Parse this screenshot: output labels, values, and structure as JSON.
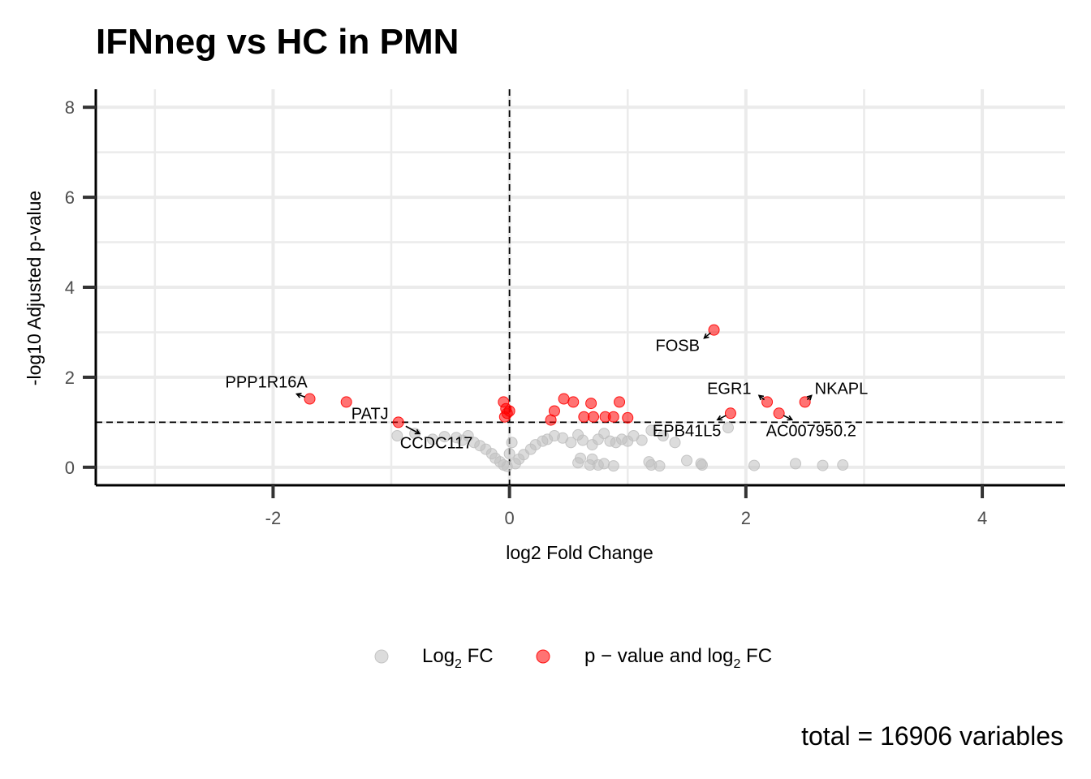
{
  "chart_data": {
    "type": "scatter",
    "title": "IFNneg vs HC in PMN",
    "xlabel": "log2 Fold Change",
    "ylabel": "-log10 Adjusted p-value",
    "xlim": [
      -3.5,
      4.7
    ],
    "ylim": [
      -0.4,
      8.4
    ],
    "x_ticks": [
      -2,
      0,
      2,
      4
    ],
    "x_tick_labels": [
      "-2",
      "0",
      "2",
      "4"
    ],
    "y_ticks": [
      0,
      2,
      4,
      6,
      8
    ],
    "y_tick_labels": [
      "0",
      "2",
      "4",
      "6",
      "8"
    ],
    "grid": true,
    "thresholds": {
      "log2fc": 0,
      "neg_log10_padj": 1.0
    },
    "legend_position": "bottom",
    "caption": "total = 16906 variables",
    "colors": {
      "ns": "#c0c0c0",
      "sig": "#ff0000"
    },
    "series": [
      {
        "name": "Log2 FC",
        "legend_main": "Log",
        "legend_sub": "2",
        "legend_tail": " FC",
        "color": "#c0c0c0",
        "points": [
          {
            "x": -0.95,
            "y": 0.7
          },
          {
            "x": -0.8,
            "y": 0.75
          },
          {
            "x": -0.65,
            "y": 0.62
          },
          {
            "x": -0.55,
            "y": 0.68
          },
          {
            "x": -0.45,
            "y": 0.66
          },
          {
            "x": -0.4,
            "y": 0.6
          },
          {
            "x": -0.35,
            "y": 0.7
          },
          {
            "x": -0.3,
            "y": 0.55
          },
          {
            "x": -0.25,
            "y": 0.48
          },
          {
            "x": -0.2,
            "y": 0.4
          },
          {
            "x": -0.15,
            "y": 0.3
          },
          {
            "x": -0.12,
            "y": 0.2
          },
          {
            "x": -0.08,
            "y": 0.12
          },
          {
            "x": -0.05,
            "y": 0.05
          },
          {
            "x": -0.02,
            "y": 0.02
          },
          {
            "x": 0.0,
            "y": 0.3
          },
          {
            "x": 0.02,
            "y": 0.55
          },
          {
            "x": 0.05,
            "y": 0.08
          },
          {
            "x": 0.08,
            "y": 0.18
          },
          {
            "x": 0.12,
            "y": 0.28
          },
          {
            "x": 0.18,
            "y": 0.4
          },
          {
            "x": 0.22,
            "y": 0.5
          },
          {
            "x": 0.28,
            "y": 0.58
          },
          {
            "x": 0.32,
            "y": 0.62
          },
          {
            "x": 0.38,
            "y": 0.7
          },
          {
            "x": 0.45,
            "y": 0.65
          },
          {
            "x": 0.52,
            "y": 0.55
          },
          {
            "x": 0.58,
            "y": 0.72
          },
          {
            "x": 0.62,
            "y": 0.6
          },
          {
            "x": 0.7,
            "y": 0.5
          },
          {
            "x": 0.75,
            "y": 0.62
          },
          {
            "x": 0.8,
            "y": 0.75
          },
          {
            "x": 0.85,
            "y": 0.58
          },
          {
            "x": 0.9,
            "y": 0.55
          },
          {
            "x": 0.95,
            "y": 0.62
          },
          {
            "x": 1.0,
            "y": 0.58
          },
          {
            "x": 1.05,
            "y": 0.7
          },
          {
            "x": 1.12,
            "y": 0.6
          },
          {
            "x": 1.2,
            "y": 0.82
          },
          {
            "x": 1.3,
            "y": 0.7
          },
          {
            "x": 1.4,
            "y": 0.55
          },
          {
            "x": 1.85,
            "y": 0.88
          },
          {
            "x": 0.6,
            "y": 0.2
          },
          {
            "x": 0.7,
            "y": 0.18
          },
          {
            "x": 0.58,
            "y": 0.1
          },
          {
            "x": 0.68,
            "y": 0.05
          },
          {
            "x": 0.75,
            "y": 0.05
          },
          {
            "x": 0.8,
            "y": 0.08
          },
          {
            "x": 0.88,
            "y": 0.03
          },
          {
            "x": 1.18,
            "y": 0.12
          },
          {
            "x": 1.2,
            "y": 0.05
          },
          {
            "x": 1.27,
            "y": 0.03
          },
          {
            "x": 1.5,
            "y": 0.15
          },
          {
            "x": 1.62,
            "y": 0.08
          },
          {
            "x": 1.63,
            "y": 0.05
          },
          {
            "x": 2.07,
            "y": 0.04
          },
          {
            "x": 2.42,
            "y": 0.08
          },
          {
            "x": 2.65,
            "y": 0.04
          },
          {
            "x": 2.82,
            "y": 0.05
          }
        ]
      },
      {
        "name": "p – value and log2 FC",
        "legend_main": "p − value and log",
        "legend_sub": "2",
        "legend_tail": " FC",
        "color": "#ff0000",
        "points": [
          {
            "x": -1.69,
            "y": 1.52
          },
          {
            "x": -1.38,
            "y": 1.45
          },
          {
            "x": -0.94,
            "y": 1.0
          },
          {
            "x": -0.05,
            "y": 1.45
          },
          {
            "x": -0.03,
            "y": 1.3
          },
          {
            "x": -0.02,
            "y": 1.2
          },
          {
            "x": 0.0,
            "y": 1.25
          },
          {
            "x": -0.04,
            "y": 1.12
          },
          {
            "x": 0.35,
            "y": 1.05
          },
          {
            "x": 0.38,
            "y": 1.25
          },
          {
            "x": 0.46,
            "y": 1.52
          },
          {
            "x": 0.54,
            "y": 1.45
          },
          {
            "x": 0.63,
            "y": 1.12
          },
          {
            "x": 0.69,
            "y": 1.42
          },
          {
            "x": 0.71,
            "y": 1.12
          },
          {
            "x": 0.81,
            "y": 1.12
          },
          {
            "x": 0.88,
            "y": 1.12
          },
          {
            "x": 0.93,
            "y": 1.45
          },
          {
            "x": 1.0,
            "y": 1.1
          },
          {
            "x": 1.73,
            "y": 3.05
          },
          {
            "x": 1.87,
            "y": 1.2
          },
          {
            "x": 2.18,
            "y": 1.45
          },
          {
            "x": 2.28,
            "y": 1.2
          },
          {
            "x": 2.5,
            "y": 1.45
          }
        ]
      }
    ],
    "labels": [
      {
        "text": "FOSB",
        "x": 1.73,
        "y": 3.05
      },
      {
        "text": "PPP1R16A",
        "x": -1.69,
        "y": 1.52
      },
      {
        "text": "PATJ",
        "x": -0.94,
        "y": 1.0
      },
      {
        "text": "CCDC117",
        "x": -0.94,
        "y": 1.0
      },
      {
        "text": "EGR1",
        "x": 2.18,
        "y": 1.45
      },
      {
        "text": "NKAPL",
        "x": 2.5,
        "y": 1.45
      },
      {
        "text": "EPB41L5",
        "x": 1.87,
        "y": 1.2
      },
      {
        "text": "AC007950.2",
        "x": 2.28,
        "y": 1.2
      }
    ]
  }
}
